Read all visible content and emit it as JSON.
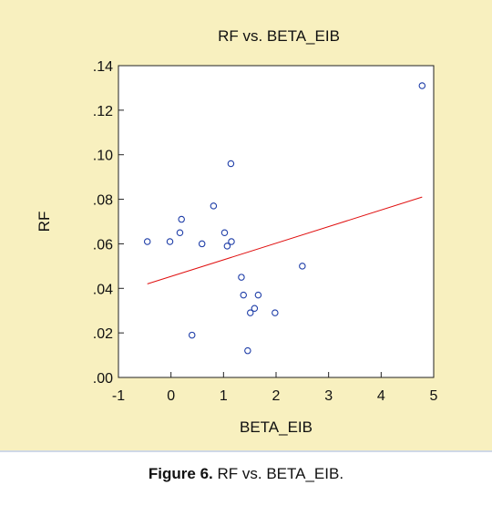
{
  "chart_data": {
    "type": "scatter",
    "title": "RF vs. BETA_EIB",
    "xlabel": "BETA_EIB",
    "ylabel": "RF",
    "xlim": [
      -1,
      5
    ],
    "ylim": [
      0,
      0.14
    ],
    "xticks": [
      -1,
      0,
      1,
      2,
      3,
      4,
      5
    ],
    "xtick_labels": [
      "-1",
      "0",
      "1",
      "2",
      "3",
      "4",
      "5"
    ],
    "yticks": [
      0,
      0.02,
      0.04,
      0.06,
      0.08,
      0.1,
      0.12,
      0.14
    ],
    "ytick_labels": [
      ".00",
      ".02",
      ".04",
      ".06",
      ".08",
      ".10",
      ".12",
      ".14"
    ],
    "grid": false,
    "points": [
      {
        "x": -0.45,
        "y": 0.061
      },
      {
        "x": -0.02,
        "y": 0.061
      },
      {
        "x": 0.17,
        "y": 0.065
      },
      {
        "x": 0.2,
        "y": 0.071
      },
      {
        "x": 0.4,
        "y": 0.019
      },
      {
        "x": 0.59,
        "y": 0.06
      },
      {
        "x": 0.81,
        "y": 0.077
      },
      {
        "x": 1.02,
        "y": 0.065
      },
      {
        "x": 1.07,
        "y": 0.059
      },
      {
        "x": 1.14,
        "y": 0.096
      },
      {
        "x": 1.15,
        "y": 0.061
      },
      {
        "x": 1.34,
        "y": 0.045
      },
      {
        "x": 1.38,
        "y": 0.037
      },
      {
        "x": 1.46,
        "y": 0.012
      },
      {
        "x": 1.51,
        "y": 0.029
      },
      {
        "x": 1.59,
        "y": 0.031
      },
      {
        "x": 1.66,
        "y": 0.037
      },
      {
        "x": 1.98,
        "y": 0.029
      },
      {
        "x": 2.5,
        "y": 0.05
      },
      {
        "x": 4.78,
        "y": 0.131
      }
    ],
    "fit_line": {
      "x": [
        -0.45,
        4.78
      ],
      "y": [
        0.042,
        0.081
      ]
    },
    "colors": {
      "points": "#1f3ea8",
      "fit_line": "#e01010",
      "panel": "#f8f0bf"
    }
  },
  "caption": {
    "label": "Figure 6.",
    "text": " RF vs. BETA_EIB."
  }
}
